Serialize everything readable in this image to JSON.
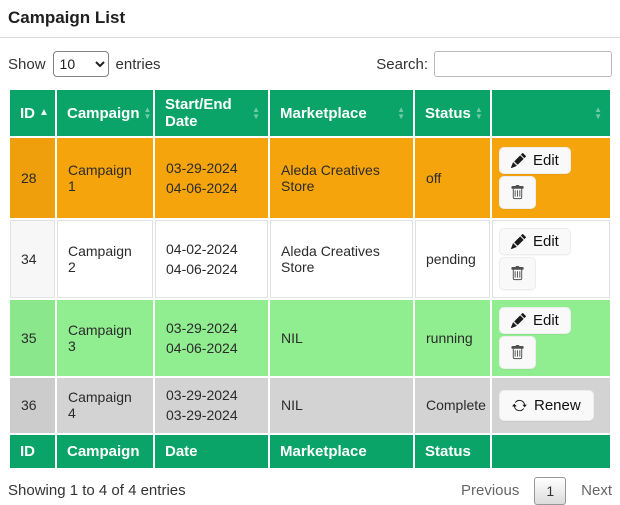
{
  "page": {
    "title": "Campaign List"
  },
  "controls": {
    "show_label": "Show",
    "entries_label": "entries",
    "selected_page_length": "10",
    "search_label": "Search:",
    "search_value": ""
  },
  "colors": {
    "header_bg": "#0aa468",
    "row_orange": "#f6a40b",
    "row_white": "#ffffff",
    "row_green": "#90ee90",
    "row_gray": "#d3d3d3"
  },
  "table": {
    "columns": [
      {
        "label": "ID",
        "sort": "asc"
      },
      {
        "label": "Campaign",
        "sort": "both"
      },
      {
        "label": "Start/End Date",
        "sort": "both"
      },
      {
        "label": "Marketplace",
        "sort": "both"
      },
      {
        "label": "Status",
        "sort": "both"
      },
      {
        "label": "",
        "sort": "both"
      }
    ],
    "footer_columns": [
      "ID",
      "Campaign",
      "Date",
      "Marketplace",
      "Status",
      ""
    ],
    "rows": [
      {
        "id": "28",
        "campaign": "Campaign 1",
        "dates": [
          "03-29-2024",
          "04-06-2024"
        ],
        "marketplace": "Aleda Creatives Store",
        "status": "off",
        "row_bg": "#f6a40b",
        "actions": [
          "edit",
          "delete"
        ]
      },
      {
        "id": "34",
        "campaign": "Campaign 2",
        "dates": [
          "04-02-2024",
          "04-06-2024"
        ],
        "marketplace": "Aleda Creatives Store",
        "status": "pending",
        "row_bg": "#ffffff",
        "actions": [
          "edit",
          "delete"
        ]
      },
      {
        "id": "35",
        "campaign": "Campaign 3",
        "dates": [
          "03-29-2024",
          "04-06-2024"
        ],
        "marketplace": "NIL",
        "status": "running",
        "row_bg": "#90ee90",
        "actions": [
          "edit",
          "delete"
        ]
      },
      {
        "id": "36",
        "campaign": "Campaign 4",
        "dates": [
          "03-29-2024",
          "03-29-2024"
        ],
        "marketplace": "NIL",
        "status": "Complete",
        "row_bg": "#d3d3d3",
        "actions": [
          "renew"
        ]
      }
    ],
    "action_labels": {
      "edit": "Edit",
      "delete": "",
      "renew": "Renew"
    },
    "action_icons": {
      "edit": "pencil-icon",
      "delete": "trash-icon",
      "renew": "renew-icon"
    }
  },
  "summary": {
    "info": "Showing 1 to 4 of 4 entries"
  },
  "pagination": {
    "previous_label": "Previous",
    "current_page": "1",
    "next_label": "Next"
  }
}
